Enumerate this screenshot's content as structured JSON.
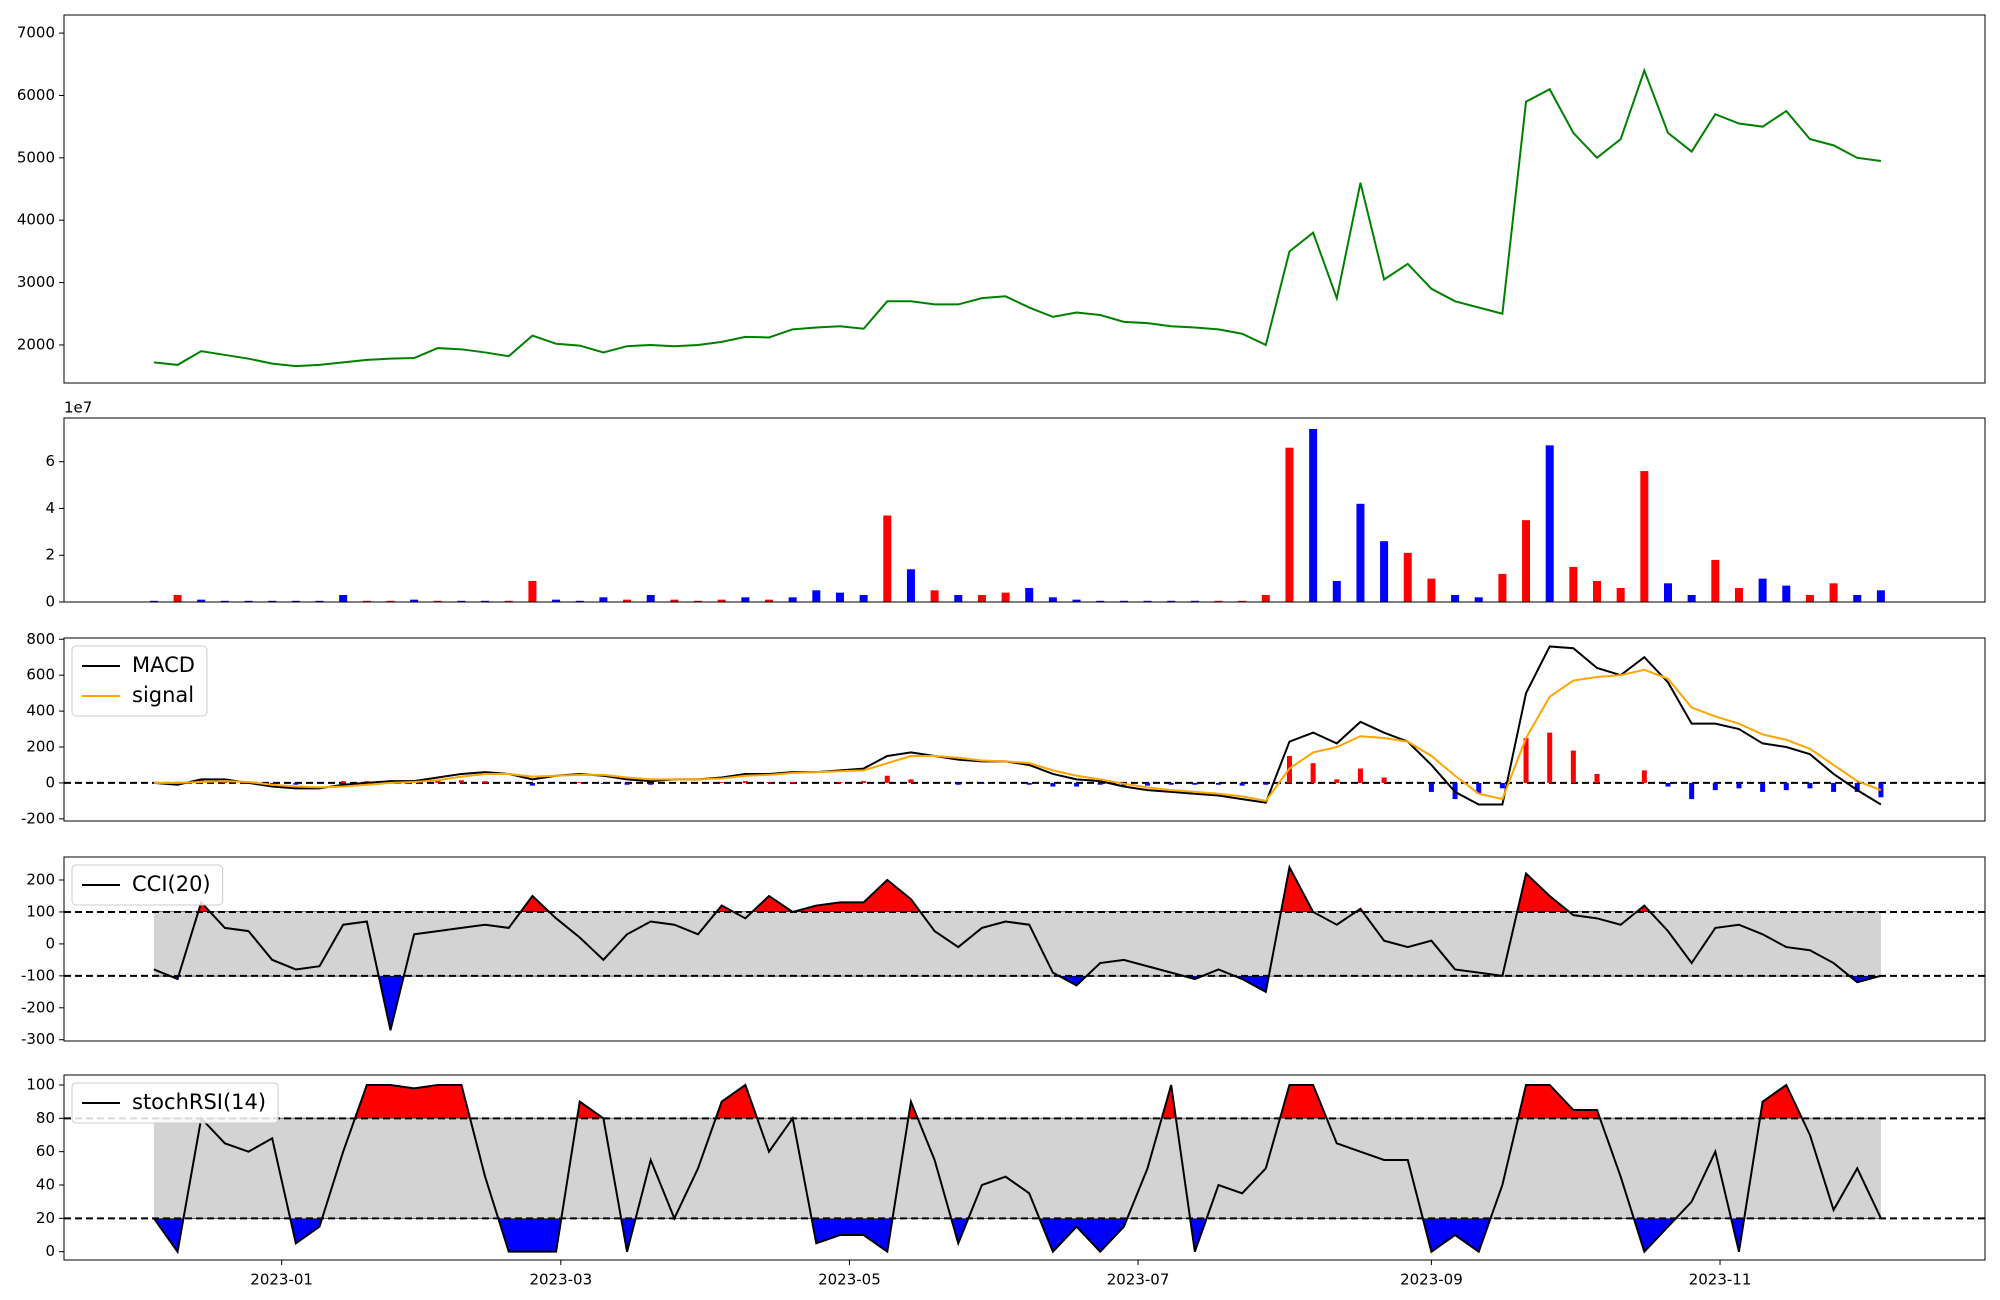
{
  "chart_data": [
    {
      "type": "line",
      "series": [
        {
          "color": "green",
          "values": [
            1720,
            1680,
            1900,
            1840,
            1780,
            1700,
            1660,
            1680,
            1720,
            1760,
            1780,
            1790,
            1950,
            1930,
            1880,
            1820,
            2150,
            2020,
            1990,
            1880,
            1980,
            2000,
            1980,
            2000,
            2050,
            2130,
            2120,
            2250,
            2280,
            2300,
            2260,
            2700,
            2700,
            2650,
            2650,
            2750,
            2780,
            2600,
            2450,
            2520,
            2480,
            2370,
            2350,
            2300,
            2280,
            2250,
            2180,
            2000,
            3500,
            3800,
            2750,
            4600,
            3050,
            3300,
            2900,
            2700,
            2600,
            2500,
            5900,
            6100,
            5400,
            5000,
            5300,
            6400,
            5400,
            5100,
            5700,
            5550,
            5500,
            5750,
            5300,
            5200,
            5000,
            4950
          ]
        }
      ],
      "ylim": [
        1390,
        7290
      ],
      "yticks": [
        2000,
        3000,
        4000,
        5000,
        6000,
        7000
      ]
    },
    {
      "type": "bar",
      "offset_label": "1e7",
      "values": [
        0.05,
        0.3,
        0.1,
        0.05,
        0.05,
        0.05,
        0.05,
        0.05,
        0.3,
        0.05,
        0.05,
        0.1,
        0.05,
        0.05,
        0.05,
        0.05,
        0.9,
        0.1,
        0.05,
        0.2,
        0.1,
        0.3,
        0.1,
        0.05,
        0.1,
        0.2,
        0.1,
        0.2,
        0.5,
        0.4,
        0.3,
        3.7,
        1.4,
        0.5,
        0.3,
        0.3,
        0.4,
        0.6,
        0.2,
        0.1,
        0.05,
        0.05,
        0.05,
        0.05,
        0.05,
        0.05,
        0.05,
        0.3,
        6.6,
        7.4,
        0.9,
        4.2,
        2.6,
        2.1,
        1.0,
        0.3,
        0.2,
        1.2,
        3.5,
        6.7,
        1.5,
        0.9,
        0.6,
        5.6,
        0.8,
        0.3,
        1.8,
        0.6,
        1.0,
        0.7,
        0.3,
        0.8,
        0.3,
        0.5
      ],
      "colors": [
        "blue",
        "red",
        "blue",
        "blue",
        "blue",
        "blue",
        "blue",
        "blue",
        "blue",
        "red",
        "red",
        "blue",
        "red",
        "blue",
        "blue",
        "red",
        "red",
        "blue",
        "blue",
        "blue",
        "red",
        "blue",
        "red",
        "red",
        "red",
        "blue",
        "red",
        "blue",
        "blue",
        "blue",
        "blue",
        "red",
        "blue",
        "red",
        "blue",
        "red",
        "red",
        "blue",
        "blue",
        "blue",
        "blue",
        "blue",
        "blue",
        "blue",
        "blue",
        "red",
        "red",
        "red",
        "red",
        "blue",
        "blue",
        "blue",
        "blue",
        "red",
        "red",
        "blue",
        "blue",
        "red",
        "red",
        "blue",
        "red",
        "red",
        "red",
        "red",
        "blue",
        "blue",
        "red",
        "red",
        "blue",
        "blue",
        "red",
        "red",
        "blue",
        "blue"
      ],
      "ylim": [
        0,
        7.87
      ],
      "yticks": [
        0,
        2,
        4,
        6
      ]
    },
    {
      "type": "line",
      "legend": "upper left",
      "hlines": [
        0
      ],
      "series": [
        {
          "name": "MACD",
          "color": "black",
          "values": [
            0,
            -10,
            20,
            20,
            0,
            -20,
            -30,
            -30,
            -10,
            0,
            10,
            10,
            30,
            50,
            60,
            50,
            20,
            40,
            50,
            40,
            20,
            10,
            20,
            20,
            30,
            50,
            50,
            60,
            60,
            70,
            80,
            150,
            170,
            150,
            130,
            120,
            120,
            100,
            50,
            20,
            10,
            -20,
            -40,
            -50,
            -60,
            -70,
            -90,
            -110,
            230,
            280,
            220,
            340,
            280,
            230,
            100,
            -50,
            -120,
            -120,
            500,
            760,
            750,
            640,
            600,
            700,
            560,
            330,
            330,
            300,
            220,
            200,
            160,
            50,
            -40,
            -120
          ]
        },
        {
          "name": "signal",
          "color": "orange",
          "values": [
            0,
            0,
            5,
            10,
            5,
            -10,
            -20,
            -25,
            -20,
            -10,
            0,
            5,
            15,
            35,
            50,
            50,
            35,
            40,
            45,
            45,
            30,
            20,
            20,
            20,
            25,
            40,
            45,
            55,
            60,
            65,
            70,
            110,
            150,
            150,
            140,
            125,
            120,
            110,
            70,
            40,
            20,
            -5,
            -25,
            -40,
            -50,
            -60,
            -75,
            -100,
            80,
            170,
            200,
            260,
            250,
            230,
            150,
            40,
            -60,
            -90,
            250,
            480,
            570,
            590,
            600,
            630,
            580,
            420,
            370,
            330,
            270,
            240,
            190,
            100,
            10,
            -40
          ]
        }
      ],
      "bars": {
        "up_color": "red",
        "down_color": "blue",
        "values": [
          0,
          -10,
          15,
          10,
          -5,
          -10,
          -10,
          -5,
          10,
          10,
          10,
          5,
          15,
          15,
          10,
          0,
          -15,
          0,
          5,
          -5,
          -10,
          -10,
          0,
          0,
          5,
          10,
          5,
          5,
          0,
          5,
          10,
          40,
          20,
          0,
          -10,
          -5,
          0,
          -10,
          -20,
          -20,
          -10,
          -15,
          -15,
          -10,
          -10,
          -10,
          -15,
          -10,
          150,
          110,
          20,
          80,
          30,
          0,
          -50,
          -90,
          -60,
          -30,
          250,
          280,
          180,
          50,
          0,
          70,
          -20,
          -90,
          -40,
          -30,
          -50,
          -40,
          -30,
          -50,
          -50,
          -80
        ]
      },
      "ylim": [
        -212,
        807
      ],
      "yticks": [
        -200,
        0,
        200,
        400,
        600,
        800
      ]
    },
    {
      "type": "line",
      "legend": "upper left",
      "series": [
        {
          "name": "CCI(20)",
          "color": "black",
          "values": [
            -80,
            -110,
            130,
            50,
            40,
            -50,
            -80,
            -70,
            60,
            70,
            -270,
            30,
            40,
            50,
            60,
            50,
            150,
            80,
            20,
            -50,
            30,
            70,
            60,
            30,
            120,
            80,
            150,
            100,
            120,
            130,
            130,
            200,
            140,
            40,
            -10,
            50,
            70,
            60,
            -90,
            -130,
            -60,
            -50,
            -70,
            -90,
            -110,
            -80,
            -110,
            -150,
            240,
            100,
            60,
            110,
            10,
            -10,
            10,
            -80,
            -90,
            -100,
            220,
            150,
            90,
            80,
            60,
            120,
            40,
            -60,
            50,
            60,
            30,
            -10,
            -20,
            -60,
            -120,
            -100
          ]
        }
      ],
      "bands": {
        "upper": 100,
        "lower": -100,
        "band_color": "lightgray",
        "upper_color": "red",
        "lower_color": "blue"
      },
      "ylim": [
        -304,
        272
      ],
      "yticks": [
        -300,
        -200,
        -100,
        0,
        100,
        200
      ]
    },
    {
      "type": "line",
      "legend": "upper left",
      "series": [
        {
          "name": "stochRSI(14)",
          "color": "black",
          "values": [
            20,
            0,
            80,
            65,
            60,
            68,
            5,
            15,
            60,
            100,
            100,
            98,
            100,
            100,
            45,
            0,
            0,
            0,
            90,
            80,
            0,
            55,
            20,
            50,
            90,
            100,
            60,
            80,
            5,
            10,
            10,
            0,
            90,
            55,
            5,
            40,
            45,
            35,
            0,
            15,
            0,
            15,
            50,
            100,
            0,
            40,
            35,
            50,
            100,
            100,
            65,
            60,
            55,
            55,
            0,
            10,
            0,
            40,
            100,
            100,
            85,
            85,
            45,
            0,
            15,
            30,
            60,
            0,
            90,
            100,
            70,
            25,
            50,
            20
          ]
        }
      ],
      "bands": {
        "upper": 80,
        "lower": 20,
        "band_color": "lightgray",
        "upper_color": "red",
        "lower_color": "blue"
      },
      "ylim": [
        -5,
        106
      ],
      "yticks": [
        0,
        20,
        40,
        60,
        80,
        100
      ],
      "x": [
        -27,
        -22,
        -17,
        -12,
        -7,
        -2,
        3,
        8,
        13,
        18,
        23,
        28,
        33,
        38,
        43,
        48,
        53,
        58,
        63,
        68,
        73,
        78,
        83,
        88,
        93,
        98,
        103,
        108,
        113,
        118,
        123,
        128,
        133,
        138,
        143,
        148,
        153,
        158,
        163,
        168,
        173,
        178,
        183,
        188,
        193,
        198,
        203,
        208,
        213,
        218,
        223,
        228,
        233,
        238,
        243,
        248,
        253,
        258,
        263,
        268,
        273,
        278,
        283,
        288,
        293,
        298,
        303,
        308,
        313,
        318,
        323,
        328,
        333,
        338
      ],
      "xlim": [
        -46,
        360
      ],
      "xticks": [
        {
          "value": 0,
          "label": "2023-01"
        },
        {
          "value": 59,
          "label": "2023-03"
        },
        {
          "value": 120,
          "label": "2023-05"
        },
        {
          "value": 181,
          "label": "2023-07"
        },
        {
          "value": 243,
          "label": "2023-09"
        },
        {
          "value": 304,
          "label": "2023-11"
        }
      ]
    }
  ]
}
